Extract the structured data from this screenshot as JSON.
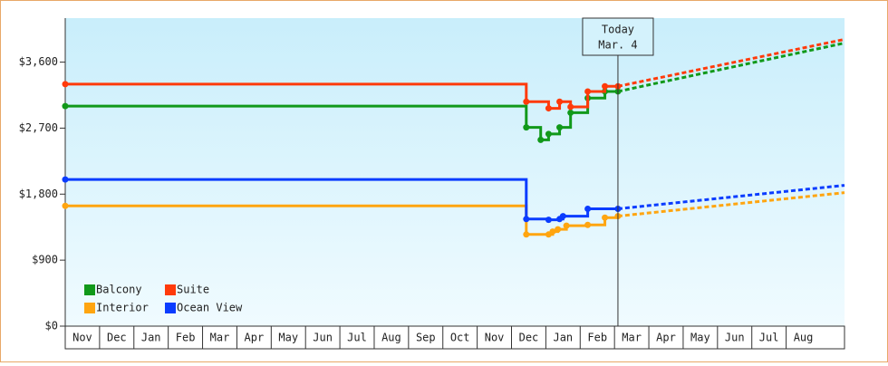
{
  "chart_data": {
    "type": "step-line",
    "months": [
      "Nov",
      "Dec",
      "Jan",
      "Feb",
      "Mar",
      "Apr",
      "May",
      "Jun",
      "Jul",
      "Aug",
      "Sep",
      "Oct",
      "Nov",
      "Dec",
      "Jan",
      "Feb",
      "Mar",
      "Apr",
      "May",
      "Jun",
      "Jul",
      "Aug"
    ],
    "xlim": [
      0,
      22.7
    ],
    "ylim": [
      0,
      4200
    ],
    "yticks": [
      {
        "value": 0,
        "label": "$0"
      },
      {
        "value": 900,
        "label": "$900"
      },
      {
        "value": 1800,
        "label": "$1,800"
      },
      {
        "value": 2700,
        "label": "$2,700"
      },
      {
        "value": 3600,
        "label": "$3,600"
      }
    ],
    "today": {
      "x": 16.1,
      "label": "Today",
      "date": "Mar. 4"
    },
    "legend": "lower left",
    "series": [
      {
        "name": "Balcony",
        "color": "#11991a",
        "x": [
          0,
          13.43,
          13.85,
          14.08,
          14.4,
          14.72,
          15.22,
          15.72,
          16.1
        ],
        "values": [
          3000,
          2710,
          2540,
          2620,
          2710,
          2910,
          3110,
          3200,
          3200
        ],
        "forecast_x": [
          16.1,
          22.7
        ],
        "forecast_values": [
          3200,
          3860
        ]
      },
      {
        "name": "Suite",
        "color": "#ff3a0a",
        "x": [
          0,
          13.43,
          14.08,
          14.4,
          14.72,
          15.22,
          15.72,
          16.1
        ],
        "values": [
          3300,
          3060,
          2970,
          3060,
          2990,
          3200,
          3270,
          3270
        ],
        "forecast_x": [
          16.1,
          22.7
        ],
        "forecast_values": [
          3270,
          3910
        ]
      },
      {
        "name": "Interior",
        "color": "#ffa510",
        "x": [
          0,
          13.43,
          14.08,
          14.2,
          14.35,
          14.6,
          15.22,
          15.72,
          16.1
        ],
        "values": [
          1640,
          1250,
          1250,
          1290,
          1320,
          1370,
          1380,
          1480,
          1500
        ],
        "forecast_x": [
          16.1,
          22.7
        ],
        "forecast_values": [
          1500,
          1820
        ]
      },
      {
        "name": "Ocean View",
        "color": "#0a3cff",
        "x": [
          0,
          13.43,
          14.08,
          14.4,
          14.5,
          15.22,
          16.1
        ],
        "values": [
          2000,
          1460,
          1450,
          1460,
          1500,
          1600,
          1600
        ],
        "forecast_x": [
          16.1,
          22.7
        ],
        "forecast_values": [
          1600,
          1920
        ]
      }
    ]
  }
}
